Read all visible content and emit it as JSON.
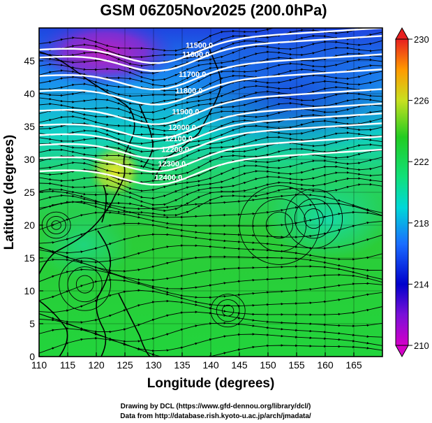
{
  "title": "GSM 06Z05Nov2025 (200.0hPa)",
  "xaxis": {
    "label": "Longitude (degrees)",
    "range": [
      110,
      170
    ],
    "ticks": [
      "110",
      "115",
      "120",
      "125",
      "130",
      "135",
      "140",
      "145",
      "150",
      "155",
      "160",
      "165"
    ]
  },
  "yaxis": {
    "label": "Latitude  (degrees)",
    "range": [
      0,
      50
    ],
    "ticks": [
      "0",
      "5",
      "10",
      "15",
      "20",
      "25",
      "30",
      "35",
      "40",
      "45"
    ]
  },
  "colorbar": {
    "range": [
      210,
      230
    ],
    "ticks": [
      "210",
      "214",
      "218",
      "222",
      "226",
      "230"
    ],
    "colors": {
      "min": "#d400c8",
      "low": "#0000cc",
      "mid_low": "#1a5cff",
      "cyan": "#00d8d8",
      "green": "#22cc22",
      "yellow": "#f0e020",
      "orange": "#ff8c00",
      "max": "#e82020"
    }
  },
  "contours": [
    {
      "label": "11500.0",
      "lat": 47.8
    },
    {
      "label": "11600.0",
      "lat": 46.6
    },
    {
      "label": "11700.0",
      "lat": 43.8
    },
    {
      "label": "11800.0",
      "lat": 41.5
    },
    {
      "label": "11900.0",
      "lat": 38.5
    },
    {
      "label": "12000.0",
      "lat": 36.3
    },
    {
      "label": "12100.0",
      "lat": 34.8
    },
    {
      "label": "12200.0",
      "lat": 33.3
    },
    {
      "label": "12300.0",
      "lat": 31.3
    },
    {
      "label": "12400.0",
      "lat": 29.3
    }
  ],
  "credits": {
    "line1": "Drawing by DCL (https://www.gfd-dennou.org/library/dcl/)",
    "line2": "Data from http://database.rish.kyoto-u.ac.jp/arch/jmadata/"
  }
}
